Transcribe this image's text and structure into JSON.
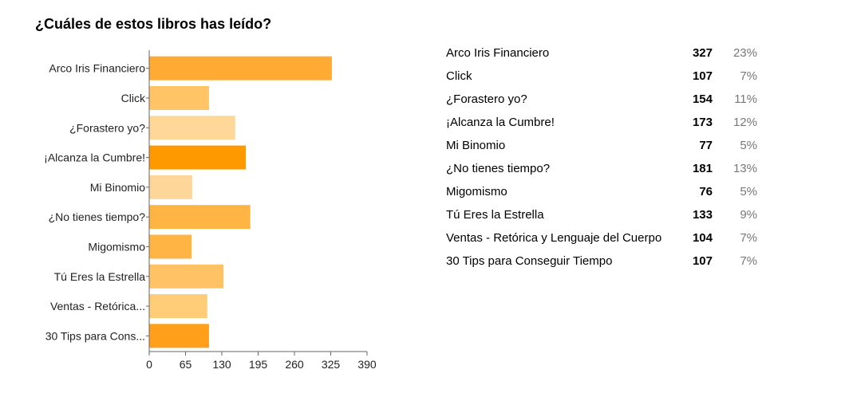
{
  "title": "¿Cuáles de estos libros has leído?",
  "colors": {
    "axis": "#666666",
    "label": "#222222"
  },
  "chart_data": {
    "type": "bar",
    "orientation": "horizontal",
    "categories": [
      "Arco Iris Financiero",
      "Click",
      "¿Forastero yo?",
      "¡Alcanza la Cumbre!",
      "Mi Binomio",
      "¿No tienes tiempo?",
      "Migomismo",
      "Tú Eres la Estrella",
      "Ventas - Retórica...",
      "30 Tips para Cons..."
    ],
    "values": [
      327,
      107,
      154,
      173,
      77,
      181,
      76,
      133,
      104,
      107
    ],
    "colors": [
      "#ffaa33",
      "#ffc466",
      "#ffd799",
      "#ff9900",
      "#ffd699",
      "#ffb444",
      "#ffb444",
      "#ffc366",
      "#ffcc77",
      "#ff9f1a"
    ],
    "xlim": [
      0,
      390
    ],
    "xticks": [
      0,
      65,
      130,
      195,
      260,
      325,
      390
    ],
    "grid": false,
    "legend": "none"
  },
  "summary": {
    "rows": [
      {
        "label": "Arco Iris Financiero",
        "count": "327",
        "percent": "23%"
      },
      {
        "label": "Click",
        "count": "107",
        "percent": "7%"
      },
      {
        "label": "¿Forastero yo?",
        "count": "154",
        "percent": "11%"
      },
      {
        "label": "¡Alcanza la Cumbre!",
        "count": "173",
        "percent": "12%"
      },
      {
        "label": "Mi Binomio",
        "count": "77",
        "percent": "5%"
      },
      {
        "label": "¿No tienes tiempo?",
        "count": "181",
        "percent": "13%"
      },
      {
        "label": "Migomismo",
        "count": "76",
        "percent": "5%"
      },
      {
        "label": "Tú Eres la Estrella",
        "count": "133",
        "percent": "9%"
      },
      {
        "label": "Ventas - Retórica y Lenguaje del Cuerpo",
        "count": "104",
        "percent": "7%"
      },
      {
        "label": "30 Tips para Conseguir Tiempo",
        "count": "107",
        "percent": "7%"
      }
    ]
  }
}
